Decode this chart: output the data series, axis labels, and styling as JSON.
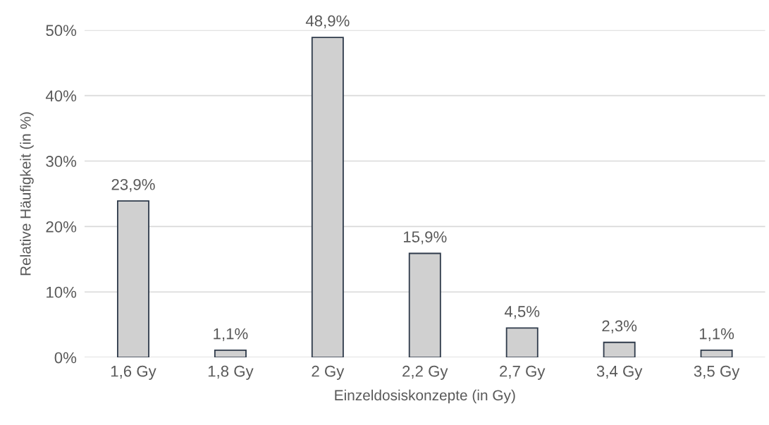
{
  "chart_data": {
    "type": "bar",
    "xlabel": "Einzeldosiskonzepte (in Gy)",
    "ylabel": "Relative Häufigkeit (in %)",
    "categories": [
      "1,6 Gy",
      "1,8 Gy",
      "2 Gy",
      "2,2 Gy",
      "2,7 Gy",
      "3,4 Gy",
      "3,5 Gy"
    ],
    "values": [
      23.9,
      1.1,
      48.9,
      15.9,
      4.5,
      2.3,
      1.1
    ],
    "value_labels": [
      "23,9%",
      "1,1%",
      "48,9%",
      "15,9%",
      "4,5%",
      "2,3%",
      "1,1%"
    ],
    "color": "#d0d0d0",
    "ylim": [
      0,
      50
    ],
    "yticks": [
      {
        "value": 0,
        "label": "0%"
      },
      {
        "value": 10,
        "label": "10%"
      },
      {
        "value": 20,
        "label": "20%"
      },
      {
        "value": 30,
        "label": "30%"
      },
      {
        "value": 40,
        "label": "40%"
      },
      {
        "value": 50,
        "label": "50%"
      }
    ],
    "grid": "y"
  }
}
